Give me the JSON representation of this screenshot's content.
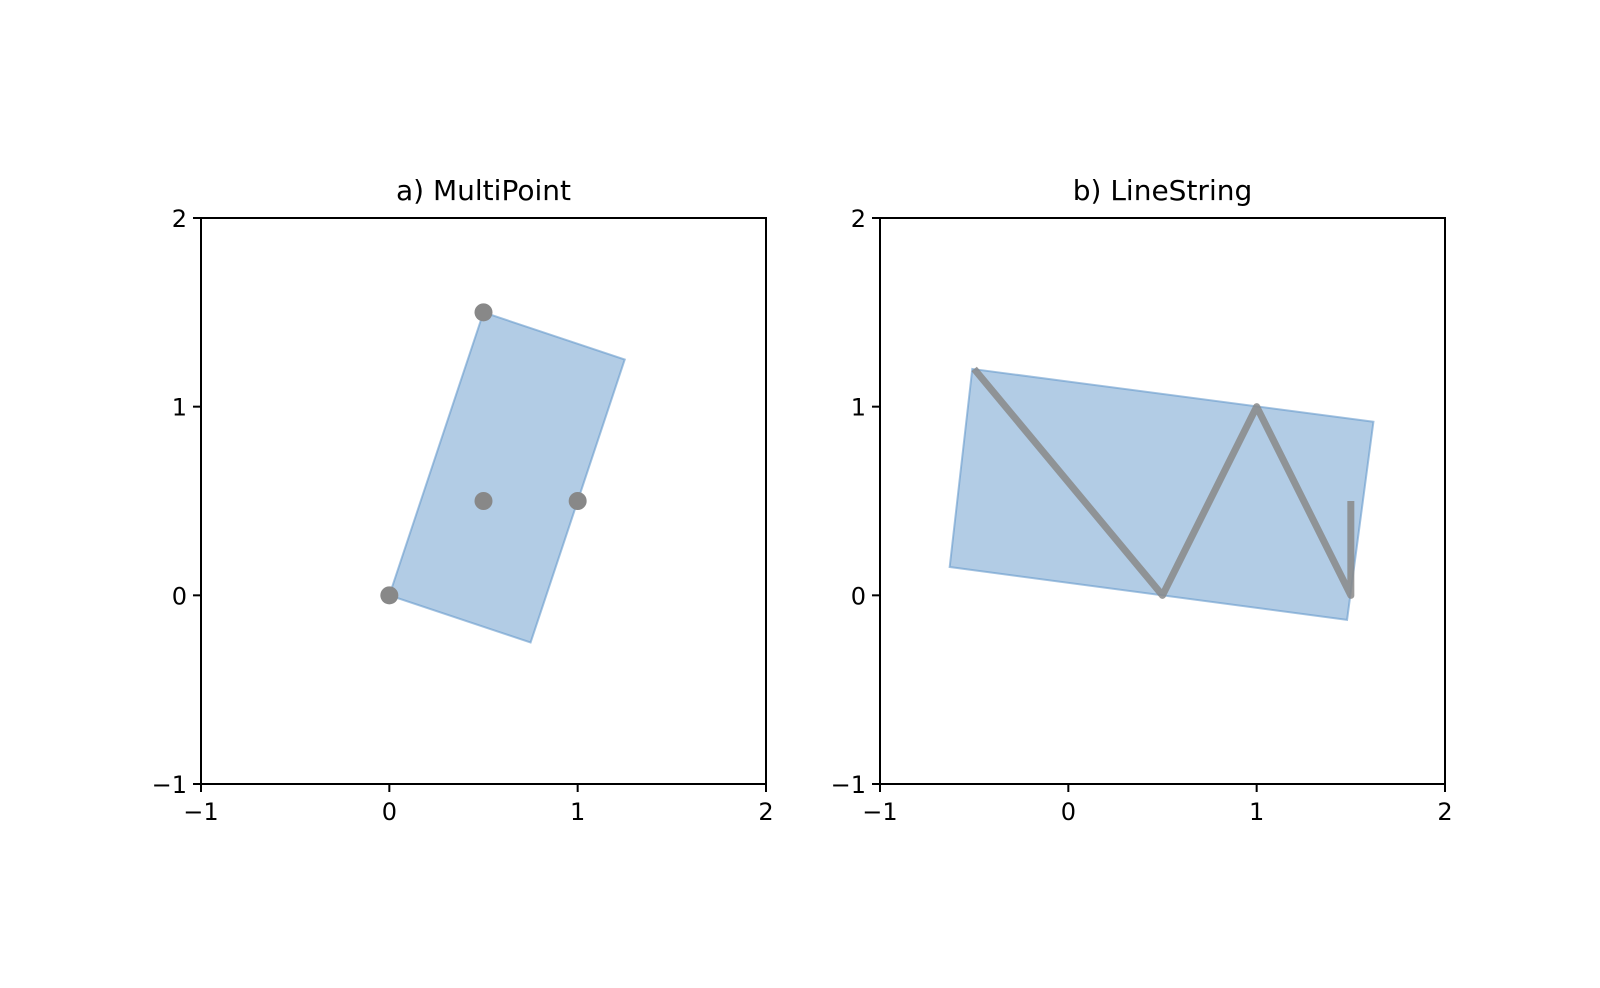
{
  "chart_data": [
    {
      "type": "scatter",
      "title": "a) MultiPoint",
      "xlim": [
        -1,
        2
      ],
      "ylim": [
        -1,
        2
      ],
      "xticks": [
        {
          "value": -1,
          "label": "−1"
        },
        0,
        1,
        2
      ],
      "yticks": [
        {
          "value": -1,
          "label": "−1"
        },
        0,
        1,
        2
      ],
      "polygon": {
        "x": [
          0.5,
          1.25,
          0.75,
          0
        ],
        "y": [
          1.5,
          1.25,
          -0.25,
          0
        ],
        "color": "#6699cc"
      },
      "geometry": {
        "x": [
          0,
          0.5,
          0.5,
          1
        ],
        "y": [
          0,
          1.5,
          0.5,
          0.5
        ],
        "color": "#888888"
      }
    },
    {
      "type": "line",
      "title": "b) LineString",
      "xlim": [
        -1,
        2
      ],
      "ylim": [
        -1,
        2
      ],
      "xticks": [
        {
          "value": -1,
          "label": "−1"
        },
        0,
        1,
        2
      ],
      "yticks": [
        {
          "value": -1,
          "label": "−1"
        },
        0,
        1,
        2
      ],
      "polygon": {
        "x": [
          -0.51,
          1.62,
          1.48,
          -0.63
        ],
        "y": [
          1.2,
          0.92,
          -0.13,
          0.15
        ],
        "color": "#6699cc"
      },
      "geometry": {
        "x": [
          -0.5,
          0.5,
          1,
          1.5,
          1.5
        ],
        "y": [
          1.2,
          0,
          1,
          0,
          0.5
        ],
        "color": "#888888"
      }
    }
  ]
}
